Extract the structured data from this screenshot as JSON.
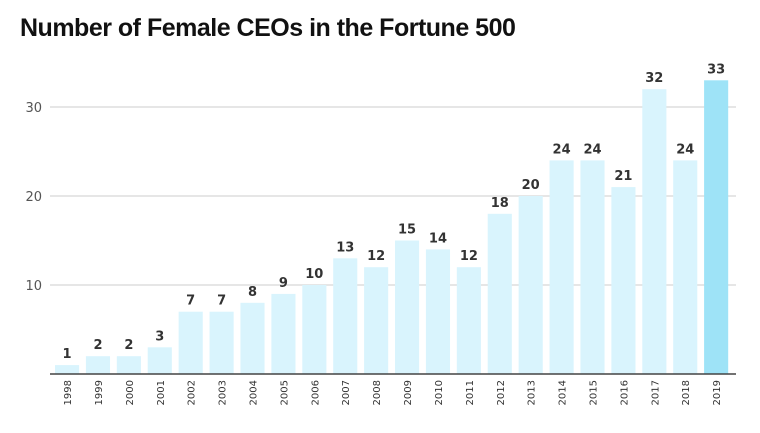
{
  "chart_data": {
    "type": "bar",
    "title": "Number of Female CEOs in the Fortune 500",
    "xlabel": "",
    "ylabel": "",
    "ylim": [
      0,
      35
    ],
    "yticks": [
      10,
      20,
      30
    ],
    "grid": true,
    "categories": [
      "1998",
      "1999",
      "2000",
      "2001",
      "2002",
      "2003",
      "2004",
      "2005",
      "2006",
      "2007",
      "2008",
      "2009",
      "2010",
      "2011",
      "2012",
      "2013",
      "2014",
      "2015",
      "2016",
      "2017",
      "2018",
      "2019"
    ],
    "values": [
      1,
      2,
      2,
      3,
      7,
      7,
      8,
      9,
      10,
      13,
      12,
      15,
      14,
      12,
      18,
      20,
      24,
      24,
      21,
      32,
      24,
      33
    ],
    "colors": {
      "bar": "#d9f4fd",
      "highlight": "#9ee3f7",
      "highlight_index": 21
    }
  }
}
